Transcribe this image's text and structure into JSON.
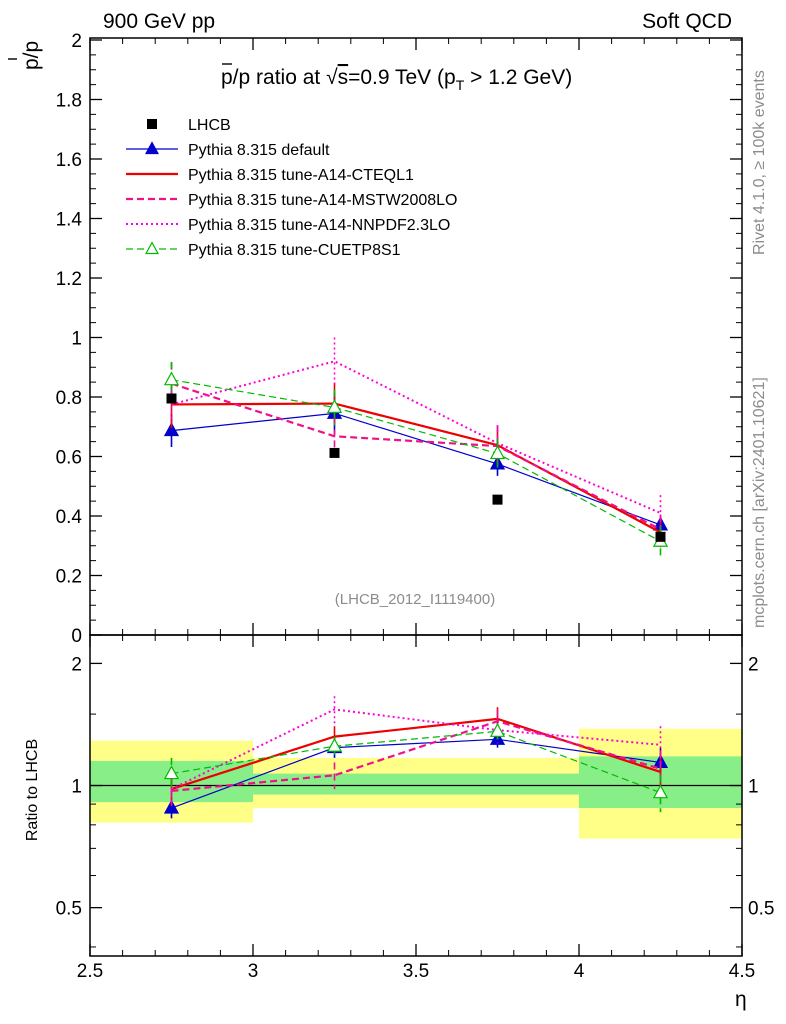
{
  "header": {
    "left": "900 GeV pp",
    "right": "Soft QCD"
  },
  "side_labels": {
    "rivet": "Rivet 4.1.0, ≥ 100k events",
    "mcplots": "mcplots.cern.ch [arXiv:2401.10621]"
  },
  "chart_data": {
    "type": "line",
    "title": "p̅/p ratio at √s=0.9 TeV (p_T > 1.2 GeV)",
    "title_parts": {
      "main": "p/p ratio at ",
      "sqrt": "s",
      "rest": "=0.9 TeV (p",
      "sub": "T",
      "tail": " > 1.2 GeV)"
    },
    "analysis_id": "(LHCB_2012_I1119400)",
    "xlabel": "η",
    "ylabel": "p/p",
    "ratio_ylabel": "Ratio to LHCB",
    "xlim": [
      2.5,
      4.5
    ],
    "ylim": [
      0,
      2
    ],
    "ratio_ylim": [
      0.38,
      2.35
    ],
    "x_ticks": [
      "2.5",
      "3",
      "3.5",
      "4",
      "4.5"
    ],
    "y_ticks": [
      "0",
      "0.2",
      "0.4",
      "0.6",
      "0.8",
      "1",
      "1.2",
      "1.4",
      "1.6",
      "1.8",
      "2"
    ],
    "ratio_y_ticks": [
      "0.5",
      "1",
      "2"
    ],
    "data": {
      "name": "LHCB",
      "x": [
        2.75,
        3.25,
        3.75,
        4.25
      ],
      "y": [
        0.795,
        0.612,
        0.455,
        0.33
      ],
      "band_x": [
        [
          2.5,
          3.0
        ],
        [
          3.0,
          3.5
        ],
        [
          3.5,
          4.0
        ],
        [
          4.0,
          4.5
        ]
      ],
      "band_stat": [
        [
          0.91,
          1.15
        ],
        [
          0.95,
          1.07
        ],
        [
          0.95,
          1.07
        ],
        [
          0.88,
          1.18
        ]
      ],
      "band_tot": [
        [
          0.81,
          1.29
        ],
        [
          0.88,
          1.17
        ],
        [
          0.88,
          1.17
        ],
        [
          0.74,
          1.38
        ]
      ]
    },
    "series": [
      {
        "name": "Pythia 8.315 default",
        "color": "#0000cc",
        "style": "solid",
        "width": 1.2,
        "marker": "triangle-filled",
        "x": [
          2.75,
          3.25,
          3.75,
          4.25
        ],
        "y": [
          0.687,
          0.745,
          0.575,
          0.37
        ],
        "err": [
          0.055,
          0.07,
          0.04,
          0.03
        ],
        "ratio": [
          0.88,
          1.24,
          1.3,
          1.14
        ],
        "ratio_err": [
          0.05,
          0.07,
          0.06,
          0.1
        ]
      },
      {
        "name": "Pythia 8.315 tune-A14-CTEQL1",
        "color": "#ee0000",
        "style": "solid",
        "width": 2.2,
        "marker": "none",
        "x": [
          2.75,
          3.25,
          3.75,
          4.25
        ],
        "y": [
          0.775,
          0.778,
          0.638,
          0.345
        ],
        "err": [
          0.08,
          0.07,
          0.06,
          0.05
        ],
        "ratio": [
          0.98,
          1.32,
          1.46,
          1.08
        ],
        "ratio_err": [
          0.08,
          0.08,
          0.1,
          0.12
        ]
      },
      {
        "name": "Pythia 8.315 tune-A14-MSTW2008LO",
        "color": "#ee1188",
        "style": "dashed",
        "width": 2.2,
        "marker": "none",
        "x": [
          2.75,
          3.25,
          3.75,
          4.25
        ],
        "y": [
          0.845,
          0.668,
          0.635,
          0.355
        ],
        "err": [
          0.07,
          0.06,
          0.07,
          0.05
        ],
        "ratio": [
          0.97,
          1.06,
          1.44,
          1.1
        ],
        "ratio_err": [
          0.08,
          0.08,
          0.1,
          0.12
        ]
      },
      {
        "name": "Pythia 8.315 tune-A14-NNPDF2.3LO",
        "color": "#ff00dd",
        "style": "dotted",
        "width": 2,
        "marker": "none",
        "x": [
          2.75,
          3.25,
          3.75,
          4.25
        ],
        "y": [
          0.775,
          0.92,
          0.645,
          0.41
        ],
        "err": [
          0.06,
          0.08,
          0.06,
          0.06
        ],
        "ratio": [
          0.98,
          1.54,
          1.37,
          1.26
        ],
        "ratio_err": [
          0.08,
          0.12,
          0.1,
          0.14
        ]
      },
      {
        "name": "Pythia 8.315 tune-CUETP8S1",
        "color": "#00bb00",
        "style": "dashed",
        "width": 1.2,
        "marker": "triangle-open",
        "x": [
          2.75,
          3.25,
          3.75,
          4.25
        ],
        "y": [
          0.858,
          0.765,
          0.61,
          0.315
        ],
        "err": [
          0.06,
          0.06,
          0.05,
          0.05
        ],
        "ratio": [
          1.07,
          1.25,
          1.36,
          0.96
        ],
        "ratio_err": [
          0.1,
          0.07,
          0.06,
          0.1
        ]
      }
    ]
  }
}
